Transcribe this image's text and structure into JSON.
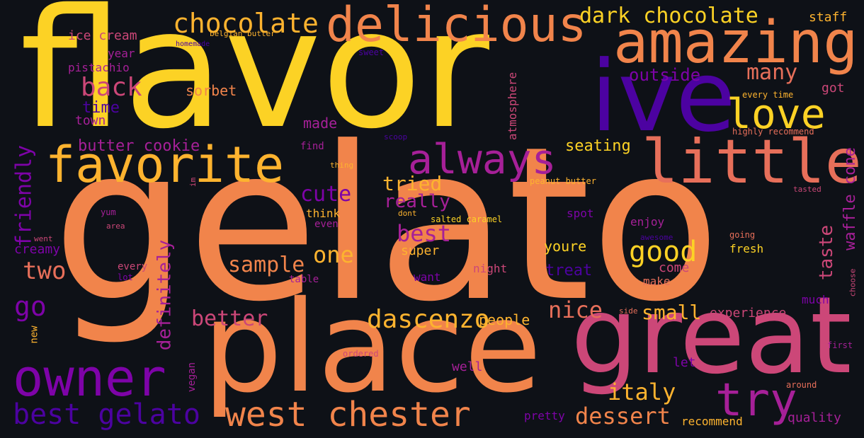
{
  "palette": {
    "yellow": "#fcd225",
    "orange": "#f1844b",
    "salmon": "#e76f5a",
    "pink": "#cc4778",
    "magenta": "#a62098",
    "purple": "#7e03a8",
    "indigo": "#4c02a1",
    "gold": "#fdb32f"
  },
  "words": {
    "w0": "flavor",
    "w1": "gelato",
    "w2": "place",
    "w3": "great",
    "w4": "ive",
    "w5": "amazing",
    "w6": "delicious",
    "w7": "little",
    "w8": "favorite",
    "w9": "owner",
    "w10": "love",
    "w11": "always",
    "w12": "west chester",
    "w13": "try",
    "w14": "best gelato",
    "w15": "dascenzo",
    "w16": "chocolate",
    "w17": "dark chocolate",
    "w18": "back",
    "w19": "good",
    "w20": "best",
    "w21": "one",
    "w22": "sample",
    "w23": "two",
    "w24": "go",
    "w25": "friendly",
    "w26": "definitely",
    "w27": "cute",
    "w28": "nice",
    "w29": "better",
    "w30": "italy",
    "w31": "dessert",
    "w32": "small",
    "w33": "many",
    "w34": "taste",
    "w35": "waffle cone",
    "w36": "tried",
    "w37": "really",
    "w38": "outside",
    "w39": "seating",
    "w40": "butter cookie",
    "w41": "ice cream",
    "w42": "pistachio",
    "w43": "time",
    "w44": "sorbet",
    "w45": "year",
    "w46": "town",
    "w47": "made",
    "w48": "creamy",
    "w49": "atmosphere",
    "w50": "staff",
    "w51": "got",
    "w52": "experience",
    "w53": "people",
    "w54": "youre",
    "w55": "treat",
    "w56": "super",
    "w57": "come",
    "w58": "make",
    "w59": "enjoy",
    "w60": "spot",
    "w61": "fresh",
    "w62": "night",
    "w63": "want",
    "w64": "table",
    "w65": "well",
    "w66": "let",
    "w67": "quality",
    "w68": "recommend",
    "w69": "pretty",
    "w70": "much",
    "w71": "vegan",
    "w72": "new",
    "w73": "every",
    "w74": "lot",
    "w75": "think",
    "w76": "even",
    "w77": "find",
    "w78": "belgian butter",
    "w79": "homemade",
    "w80": "sweet",
    "w81": "every time",
    "w82": "highly recommend",
    "w83": "scoop",
    "w84": "thing",
    "w85": "im",
    "w86": "peanut butter",
    "w87": "tasted",
    "w88": "dont",
    "w89": "salted caramel",
    "w90": "yum",
    "w91": "area",
    "w92": "went",
    "w93": "awesome",
    "w94": "going",
    "w95": "choose",
    "w96": "side",
    "w97": "ordered",
    "w98": "around",
    "w99": "first"
  }
}
